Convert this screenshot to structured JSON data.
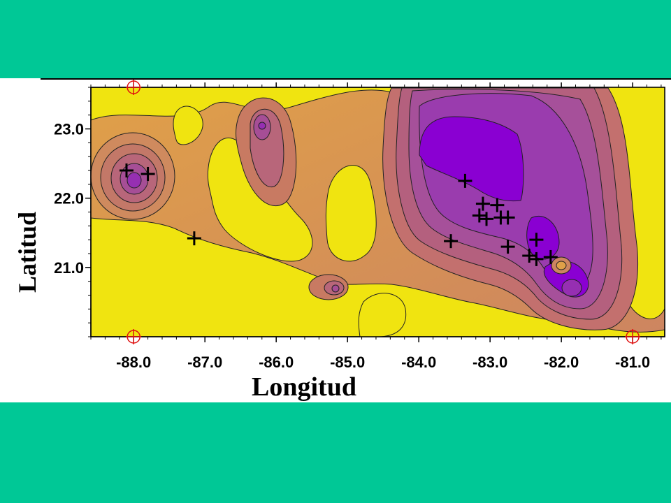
{
  "axes": {
    "xlabel": "Longitud",
    "ylabel": "Latitud",
    "x_ticks": [
      "-88.0",
      "-87.0",
      "-86.0",
      "-85.0",
      "-84.0",
      "-83.0",
      "-82.0",
      "-81.0"
    ],
    "y_ticks": [
      "23.0",
      "22.0",
      "21.0"
    ],
    "xlim": [
      -88.6,
      -80.55
    ],
    "ylim": [
      20.0,
      23.6
    ]
  },
  "colors": {
    "background": "#00c896",
    "low_value": "#f0e410",
    "mid_value": "#cd8560",
    "high_value": "#8a00d2",
    "contour_line": "#222222",
    "station_marker": "#000000",
    "control_point": "#e01010"
  },
  "stations": [
    {
      "lon": -88.1,
      "lat": 22.4
    },
    {
      "lon": -87.8,
      "lat": 22.35
    },
    {
      "lon": -87.15,
      "lat": 21.42
    },
    {
      "lon": -83.35,
      "lat": 22.25
    },
    {
      "lon": -83.1,
      "lat": 21.92
    },
    {
      "lon": -82.9,
      "lat": 21.9
    },
    {
      "lon": -83.15,
      "lat": 21.75
    },
    {
      "lon": -83.05,
      "lat": 21.7
    },
    {
      "lon": -82.85,
      "lat": 21.72
    },
    {
      "lon": -82.75,
      "lat": 21.72
    },
    {
      "lon": -83.55,
      "lat": 21.38
    },
    {
      "lon": -82.75,
      "lat": 21.3
    },
    {
      "lon": -82.35,
      "lat": 21.4
    },
    {
      "lon": -82.45,
      "lat": 21.17
    },
    {
      "lon": -82.35,
      "lat": 21.12
    },
    {
      "lon": -82.15,
      "lat": 21.15
    }
  ],
  "control_points": [
    {
      "lon": -88.0,
      "lat": 23.6
    },
    {
      "lon": -88.0,
      "lat": 20.0
    },
    {
      "lon": -81.0,
      "lat": 20.0
    }
  ]
}
